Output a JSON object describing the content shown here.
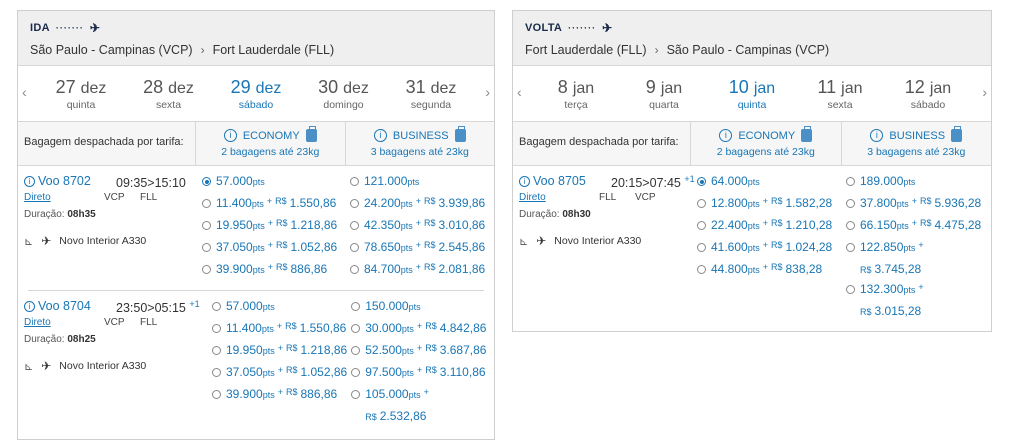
{
  "ida": {
    "direction": "IDA",
    "origin": "São Paulo - Campinas (VCP)",
    "destination": "Fort Lauderdale (FLL)",
    "days": [
      {
        "num": "27",
        "mon": "dez",
        "wd": "quinta",
        "selected": false
      },
      {
        "num": "28",
        "mon": "dez",
        "wd": "sexta",
        "selected": false
      },
      {
        "num": "29",
        "mon": "dez",
        "wd": "sábado",
        "selected": true
      },
      {
        "num": "30",
        "mon": "dez",
        "wd": "domingo",
        "selected": false
      },
      {
        "num": "31",
        "mon": "dez",
        "wd": "segunda",
        "selected": false
      }
    ],
    "bag_label": "Bagagem despachada por tarifa:",
    "economy": {
      "name": "ECONOMY",
      "desc": "2 bagagens até 23kg"
    },
    "business": {
      "name": "BUSINESS",
      "desc": "3 bagagens até 23kg"
    },
    "flights": [
      {
        "number": "Voo 8702",
        "times": "09:35>15:10",
        "plus": "",
        "stop": "Direto",
        "from": "VCP",
        "to": "FLL",
        "duration_label": "Duração:",
        "duration": "08h35",
        "aircraft": "Novo Interior A330",
        "economy": [
          {
            "pts": "57.000",
            "money": "",
            "checked": true
          },
          {
            "pts": "11.400",
            "money": "1.550,86"
          },
          {
            "pts": "19.950",
            "money": "1.218,86"
          },
          {
            "pts": "37.050",
            "money": "1.052,86"
          },
          {
            "pts": "39.900",
            "money": "886,86"
          }
        ],
        "business": [
          {
            "pts": "121.000",
            "money": ""
          },
          {
            "pts": "24.200",
            "money": "3.939,86"
          },
          {
            "pts": "42.350",
            "money": "3.010,86"
          },
          {
            "pts": "78.650",
            "money": "2.545,86"
          },
          {
            "pts": "84.700",
            "money": "2.081,86"
          }
        ]
      },
      {
        "number": "Voo 8704",
        "times": "23:50>05:15",
        "plus": "+1",
        "stop": "Direto",
        "from": "VCP",
        "to": "FLL",
        "duration_label": "Duração:",
        "duration": "08h25",
        "aircraft": "Novo Interior A330",
        "economy": [
          {
            "pts": "57.000",
            "money": ""
          },
          {
            "pts": "11.400",
            "money": "1.550,86"
          },
          {
            "pts": "19.950",
            "money": "1.218,86"
          },
          {
            "pts": "37.050",
            "money": "1.052,86"
          },
          {
            "pts": "39.900",
            "money": "886,86"
          }
        ],
        "business": [
          {
            "pts": "150.000",
            "money": ""
          },
          {
            "pts": "30.000",
            "money": "4.842,86"
          },
          {
            "pts": "52.500",
            "money": "3.687,86"
          },
          {
            "pts": "97.500",
            "money": "3.110,86"
          },
          {
            "pts": "105.000",
            "money": "2.532,86",
            "wrap": true
          }
        ]
      }
    ]
  },
  "volta": {
    "direction": "VOLTA",
    "origin": "Fort Lauderdale (FLL)",
    "destination": "São Paulo - Campinas (VCP)",
    "days": [
      {
        "num": "8",
        "mon": "jan",
        "wd": "terça",
        "selected": false
      },
      {
        "num": "9",
        "mon": "jan",
        "wd": "quarta",
        "selected": false
      },
      {
        "num": "10",
        "mon": "jan",
        "wd": "quinta",
        "selected": true
      },
      {
        "num": "11",
        "mon": "jan",
        "wd": "sexta",
        "selected": false
      },
      {
        "num": "12",
        "mon": "jan",
        "wd": "sábado",
        "selected": false
      }
    ],
    "bag_label": "Bagagem despachada por tarifa:",
    "economy": {
      "name": "ECONOMY",
      "desc": "2 bagagens até 23kg"
    },
    "business": {
      "name": "BUSINESS",
      "desc": "3 bagagens até 23kg"
    },
    "flights": [
      {
        "number": "Voo 8705",
        "times": "20:15>07:45",
        "plus": "+1",
        "stop": "Direto",
        "from": "FLL",
        "to": "VCP",
        "duration_label": "Duração:",
        "duration": "08h30",
        "aircraft": "Novo Interior A330",
        "economy": [
          {
            "pts": "64.000",
            "money": "",
            "checked": true
          },
          {
            "pts": "12.800",
            "money": "1.582,28"
          },
          {
            "pts": "22.400",
            "money": "1.210,28"
          },
          {
            "pts": "41.600",
            "money": "1.024,28"
          },
          {
            "pts": "44.800",
            "money": "838,28"
          }
        ],
        "business": [
          {
            "pts": "189.000",
            "money": ""
          },
          {
            "pts": "37.800",
            "money": "5.936,28"
          },
          {
            "pts": "66.150",
            "money": "4.475,28"
          },
          {
            "pts": "122.850",
            "money": "3.745,28",
            "wrap": true
          },
          {
            "pts": "132.300",
            "money": "3.015,28",
            "wrap": true
          }
        ]
      }
    ]
  },
  "units": {
    "pts": "pts",
    "plus": "+",
    "currency": "R$"
  },
  "icons": {
    "plane": "plane-icon",
    "info": "info-icon",
    "bag": "luggage-icon",
    "seat": "seat-icon",
    "left": "chevron-left-icon",
    "right": "chevron-right-icon"
  },
  "colors": {
    "accent": "#1976b5",
    "header_bg": "#efefef",
    "border": "#cfcfcf"
  }
}
